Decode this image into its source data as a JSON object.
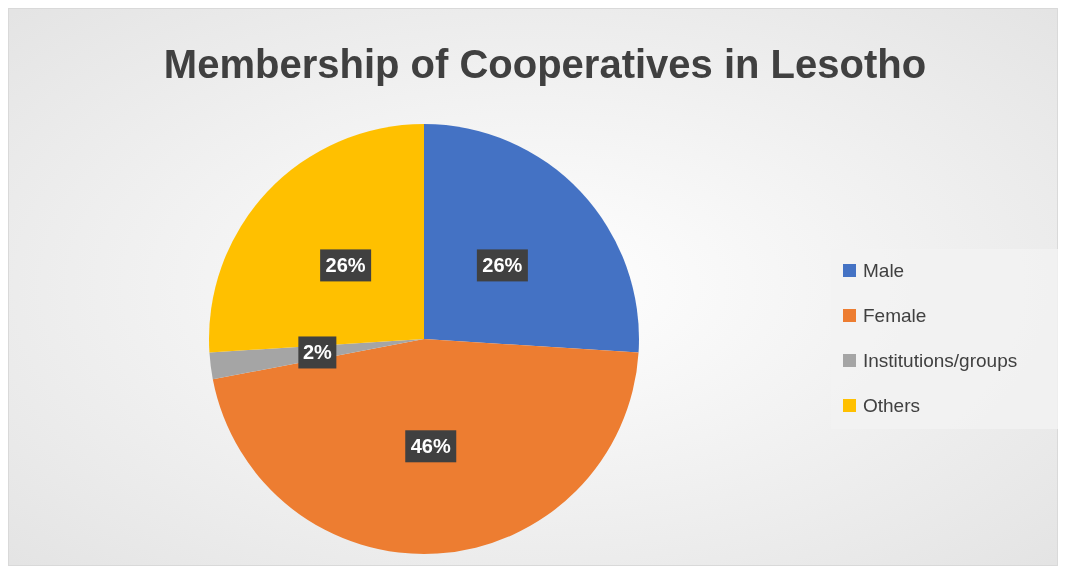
{
  "chart_data": {
    "type": "pie",
    "title": "Membership of Cooperatives in Lesotho",
    "categories": [
      "Male",
      "Female",
      "Institutions/groups",
      "Others"
    ],
    "values": [
      26,
      46,
      2,
      26
    ],
    "colors": [
      "#4472c4",
      "#ed7d31",
      "#a5a5a5",
      "#ffc000"
    ],
    "value_labels": [
      "26%",
      "46%",
      "2%",
      "26%"
    ],
    "legend": "right"
  }
}
